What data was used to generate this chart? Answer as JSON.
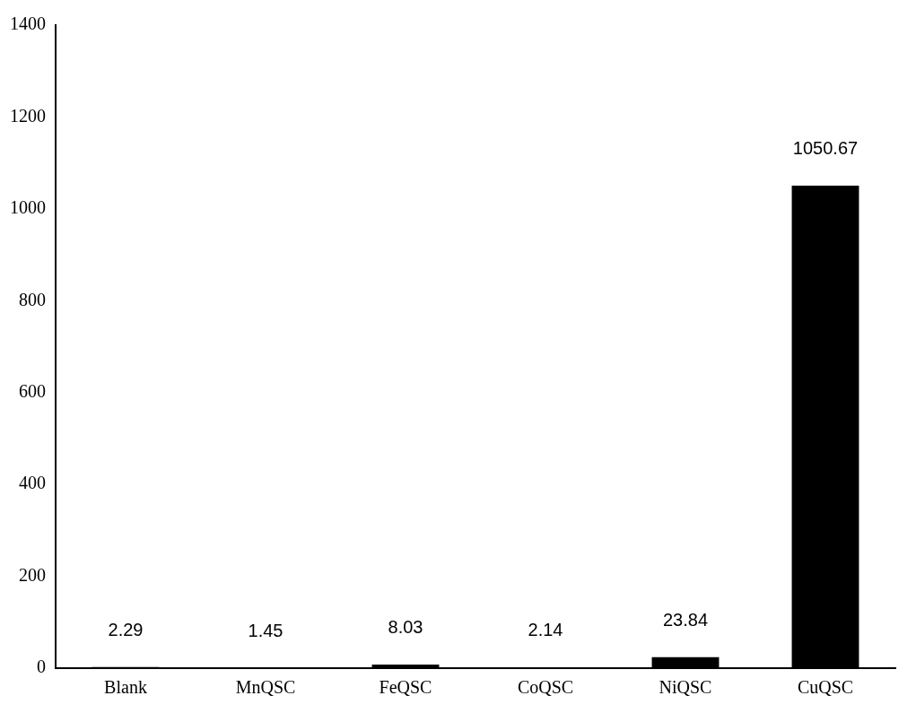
{
  "chart_data": {
    "type": "bar",
    "categories": [
      "Blank",
      "MnQSC",
      "FeQSC",
      "CoQSC",
      "NiQSC",
      "CuQSC"
    ],
    "values": [
      2.29,
      1.45,
      8.03,
      2.14,
      23.84,
      1050.67
    ],
    "color": "#000000",
    "ylim": [
      0,
      1400
    ],
    "yticks": [
      0,
      200,
      400,
      600,
      800,
      1000,
      1200,
      1400
    ],
    "data_labels": true,
    "grid": false,
    "legend": false
  }
}
